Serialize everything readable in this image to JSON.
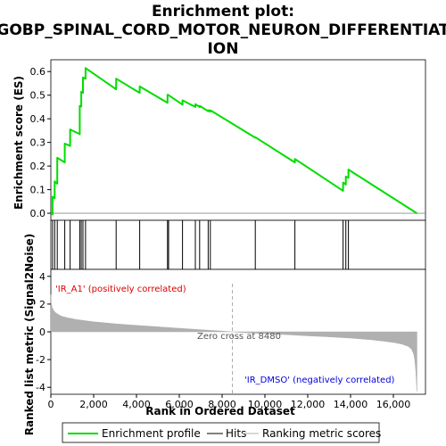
{
  "chart_data": {
    "type": "line",
    "title_line1": "Enrichment plot:",
    "title_line2": "GOBP_SPINAL_CORD_MOTOR_NEURON_DIFFERENTIAT",
    "title_line3": "ION",
    "es_ylabel": "Enrichment score (ES)",
    "rank_ylabel": "Ranked list metric (Signal2Noise)",
    "xlabel": "Rank in Ordered Dataset",
    "xlim": [
      0,
      17500
    ],
    "es_ylim": [
      -0.03,
      0.65
    ],
    "rank_ylim": [
      -4.5,
      4.5
    ],
    "x_ticks": [
      0,
      2000,
      4000,
      6000,
      8000,
      10000,
      12000,
      14000,
      16000
    ],
    "x_tick_labels": [
      "0",
      "2,000",
      "4,000",
      "6,000",
      "8,000",
      "10,000",
      "12,000",
      "14,000",
      "16,000"
    ],
    "es_ticks": [
      0.0,
      0.1,
      0.2,
      0.3,
      0.4,
      0.5,
      0.6
    ],
    "es_tick_labels": [
      "0.0",
      "0.1",
      "0.2",
      "0.3",
      "0.4",
      "0.5",
      "0.6"
    ],
    "rank_ticks": [
      4,
      2,
      0,
      -2,
      -4
    ],
    "rank_tick_labels": [
      "4",
      "2",
      "0",
      "-2",
      "-4"
    ],
    "n_genes": 17100,
    "hits": [
      80,
      180,
      300,
      650,
      900,
      1350,
      1420,
      1500,
      1620,
      3050,
      4150,
      5450,
      5500,
      6150,
      6750,
      6950,
      7350,
      7450,
      9550,
      11400,
      13650,
      13780,
      13900
    ],
    "es_profile": {
      "x": [
        0,
        80,
        80,
        180,
        180,
        300,
        300,
        650,
        650,
        900,
        900,
        1350,
        1350,
        1420,
        1420,
        1500,
        1500,
        1620,
        1620,
        3050,
        3050,
        4150,
        4150,
        5450,
        5450,
        5500,
        5500,
        6150,
        6150,
        6750,
        6750,
        6950,
        6950,
        7350,
        7350,
        7450,
        7450,
        9550,
        9550,
        11400,
        11400,
        13650,
        13650,
        13780,
        13780,
        13900,
        13900,
        17100
      ],
      "y": [
        0.0,
        -0.005,
        0.07,
        0.063,
        0.135,
        0.125,
        0.235,
        0.215,
        0.295,
        0.285,
        0.355,
        0.335,
        0.455,
        0.452,
        0.515,
        0.51,
        0.575,
        0.57,
        0.615,
        0.525,
        0.57,
        0.51,
        0.537,
        0.468,
        0.502,
        0.5,
        0.5,
        0.46,
        0.478,
        0.45,
        0.462,
        0.45,
        0.455,
        0.432,
        0.437,
        0.43,
        0.436,
        0.32,
        0.322,
        0.215,
        0.23,
        0.095,
        0.13,
        0.122,
        0.155,
        0.15,
        0.185,
        0.0
      ]
    },
    "zero_cross": 8480,
    "zero_cross_label": "Zero cross at 8480",
    "pos_label": "'IR_A1' (positively correlated)",
    "neg_label": "'IR_DMSO' (negatively correlated)",
    "metric_shape": {
      "x": [
        0,
        20,
        60,
        120,
        200,
        350,
        500,
        800,
        1200,
        2000,
        3000,
        4000,
        5000,
        6000,
        7000,
        8000,
        8480,
        9000,
        10000,
        11000,
        12000,
        13000,
        14000,
        15000,
        15500,
        16000,
        16400,
        16700,
        16850,
        16950,
        17000,
        17050,
        17100
      ],
      "y": [
        2.7,
        2.1,
        1.75,
        1.55,
        1.4,
        1.25,
        1.12,
        1.0,
        0.88,
        0.72,
        0.58,
        0.46,
        0.36,
        0.25,
        0.15,
        0.05,
        0.0,
        -0.05,
        -0.12,
        -0.2,
        -0.28,
        -0.36,
        -0.45,
        -0.58,
        -0.66,
        -0.76,
        -0.88,
        -1.05,
        -1.25,
        -1.6,
        -2.0,
        -2.8,
        -4.3
      ]
    },
    "heat_segments": {
      "x": [
        0,
        200,
        900,
        1700,
        3200,
        4800,
        6400,
        6600,
        7200,
        8600,
        10400,
        12100,
        13600,
        16500,
        16600,
        17100
      ],
      "colors": [
        "#e8222e",
        "#f04c56",
        "#f05a62",
        "#f2767c",
        "#f28c92",
        "#f4a4aa",
        "#f7c2c6",
        "#f9d4d6",
        "#fbe4e8",
        "#e6e6f7",
        "#d2d2f2",
        "#b8b8ec",
        "#9090e0",
        "#2a2acc",
        "#1010b8"
      ]
    },
    "legend": [
      "Enrichment profile",
      "Hits",
      "Ranking metric scores"
    ],
    "colors": {
      "es_line": "#00dd00",
      "hit": "#000000",
      "metric": "#b0b0b0",
      "pos_text": "#dd0000",
      "neg_text": "#0000dd",
      "zero_text": "#555555"
    }
  }
}
